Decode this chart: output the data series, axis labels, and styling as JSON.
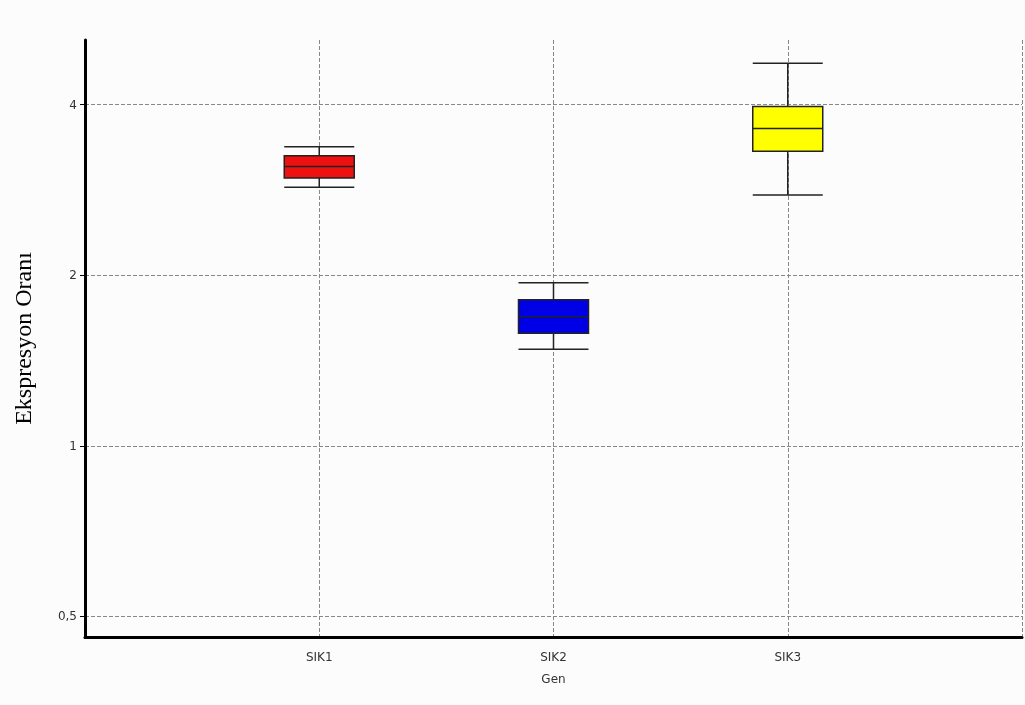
{
  "chart_data": {
    "type": "box",
    "xlabel": "Gen",
    "ylabel": "Ekspresyon Oranı",
    "categories": [
      null,
      "SIK1",
      "SIK2",
      "SIK3",
      null
    ],
    "boxes": [
      null,
      {
        "low": 2.86,
        "q1": 2.97,
        "median": 3.11,
        "q3": 3.25,
        "high": 3.37
      },
      {
        "low": 1.48,
        "q1": 1.58,
        "median": 1.69,
        "q3": 1.81,
        "high": 1.94
      },
      {
        "low": 2.77,
        "q1": 3.31,
        "median": 3.63,
        "q3": 3.97,
        "high": 4.73
      },
      null
    ],
    "colors": [
      null,
      "#ee1111",
      "#0000e6",
      "#ffff00",
      null
    ],
    "log": "y",
    "ylim": [
      0.46,
      5.2
    ],
    "yticks": [
      {
        "value": 0.5,
        "label": "0,5"
      },
      1,
      2,
      4
    ],
    "grid": true
  }
}
